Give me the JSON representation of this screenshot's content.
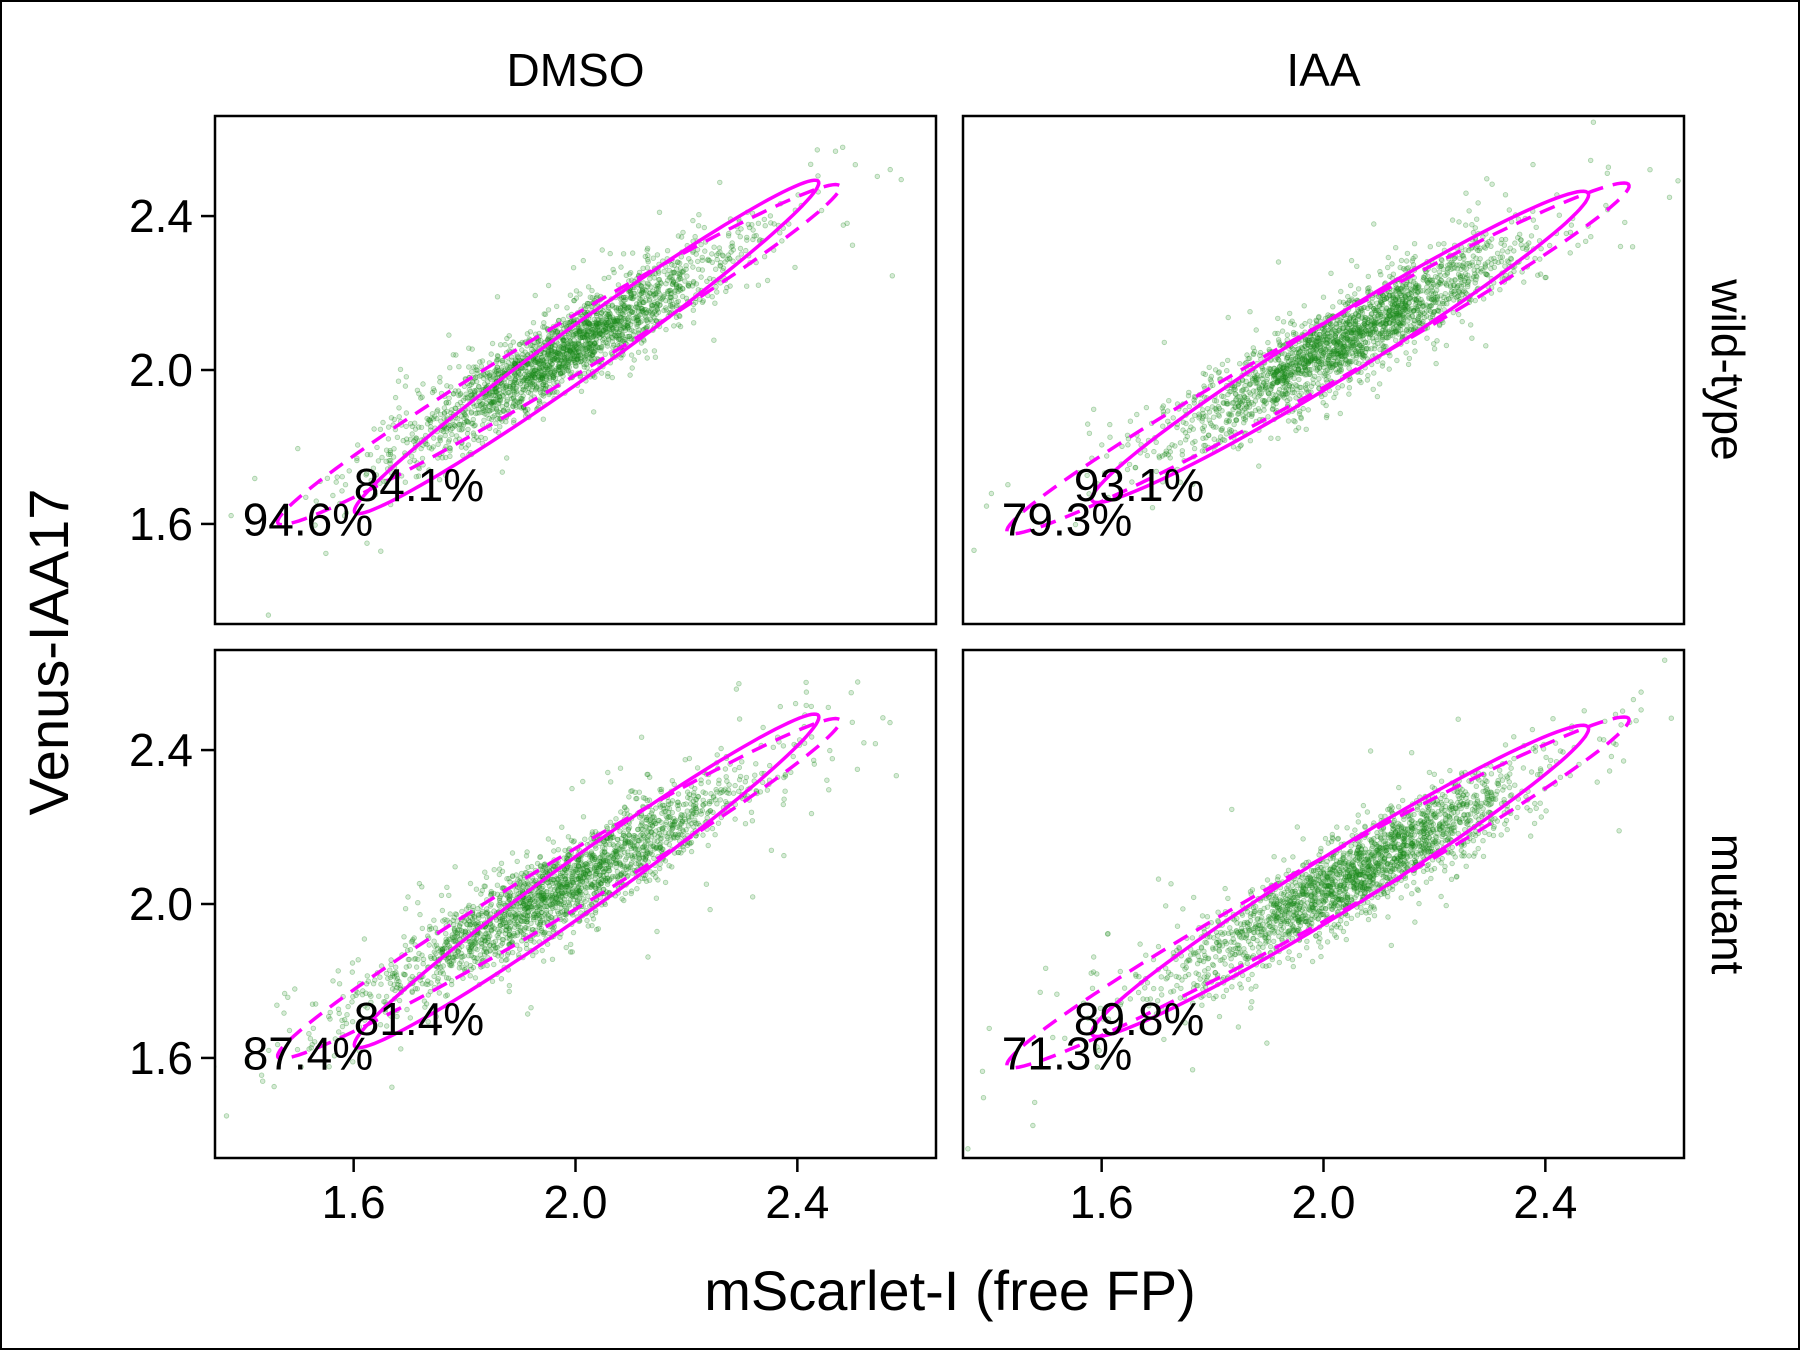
{
  "chart_data": {
    "type": "scatter",
    "xlabel": "mScarlet-I (free FP)",
    "ylabel": "Venus-IAA17",
    "xlim": [
      1.35,
      2.65
    ],
    "ylim": [
      1.34,
      2.66
    ],
    "xticks": [
      "1.6",
      "2.0",
      "2.4"
    ],
    "yticks": [
      "1.6",
      "2.0",
      "2.4"
    ],
    "column_labels": [
      "DMSO",
      "IAA"
    ],
    "row_labels": [
      "wild-type",
      "mutant"
    ],
    "colors": {
      "points": "#1a8a1a",
      "ellipse": "#ff00ff",
      "frame": "#000000"
    },
    "panels": [
      {
        "column": "DMSO",
        "row": "wild-type",
        "cloud": {
          "center": [
            1.98,
            2.05
          ],
          "spread_major": 0.19,
          "spread_minor": 0.038,
          "angle_deg": 42
        },
        "ellipse_solid": {
          "center": [
            2.02,
            2.06
          ],
          "semi_major": 0.6,
          "semi_minor": 0.055,
          "angle_deg": 46,
          "label": "84.1%",
          "label_pos": [
            1.6,
            1.66
          ]
        },
        "ellipse_dashed": {
          "center": [
            1.97,
            2.04
          ],
          "semi_major": 0.67,
          "semi_minor": 0.06,
          "angle_deg": 41,
          "label": "94.6%",
          "label_pos": [
            1.4,
            1.57
          ]
        }
      },
      {
        "column": "IAA",
        "row": "wild-type",
        "cloud": {
          "center": [
            2.04,
            2.08
          ],
          "spread_major": 0.19,
          "spread_minor": 0.04,
          "angle_deg": 40
        },
        "ellipse_solid": {
          "center": [
            2.03,
            2.06
          ],
          "semi_major": 0.6,
          "semi_minor": 0.065,
          "angle_deg": 42,
          "label": "93.1%",
          "label_pos": [
            1.55,
            1.66
          ]
        },
        "ellipse_dashed": {
          "center": [
            1.99,
            2.03
          ],
          "semi_major": 0.72,
          "semi_minor": 0.065,
          "angle_deg": 39,
          "label": "79.3%",
          "label_pos": [
            1.42,
            1.57
          ]
        }
      },
      {
        "column": "DMSO",
        "row": "mutant",
        "cloud": {
          "center": [
            1.98,
            2.05
          ],
          "spread_major": 0.22,
          "spread_minor": 0.042,
          "angle_deg": 41
        },
        "ellipse_solid": {
          "center": [
            2.02,
            2.06
          ],
          "semi_major": 0.6,
          "semi_minor": 0.058,
          "angle_deg": 46,
          "label": "81.4%",
          "label_pos": [
            1.6,
            1.66
          ]
        },
        "ellipse_dashed": {
          "center": [
            1.97,
            2.04
          ],
          "semi_major": 0.67,
          "semi_minor": 0.06,
          "angle_deg": 41,
          "label": "87.4%",
          "label_pos": [
            1.4,
            1.57
          ]
        }
      },
      {
        "column": "IAA",
        "row": "mutant",
        "cloud": {
          "center": [
            2.05,
            2.07
          ],
          "spread_major": 0.2,
          "spread_minor": 0.042,
          "angle_deg": 40
        },
        "ellipse_solid": {
          "center": [
            2.03,
            2.06
          ],
          "semi_major": 0.6,
          "semi_minor": 0.065,
          "angle_deg": 42,
          "label": "89.8%",
          "label_pos": [
            1.55,
            1.66
          ]
        },
        "ellipse_dashed": {
          "center": [
            1.99,
            2.03
          ],
          "semi_major": 0.72,
          "semi_minor": 0.065,
          "angle_deg": 39,
          "label": "71.3%",
          "label_pos": [
            1.42,
            1.57
          ]
        }
      }
    ]
  }
}
